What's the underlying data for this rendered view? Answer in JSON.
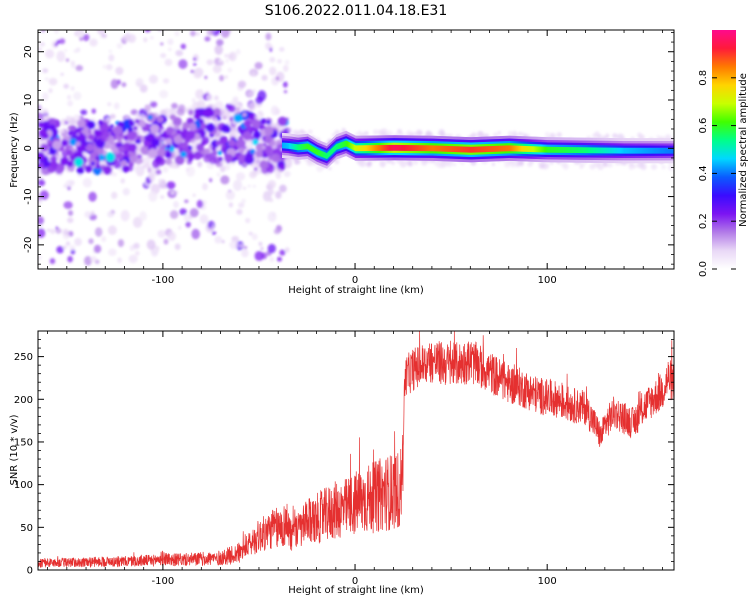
{
  "figure": {
    "title": "S106.2022.011.04.18.E31"
  },
  "colors": {
    "snr_line": "#e53030",
    "axis": "#000000",
    "spectro_bg": "#ffffff",
    "colormap": [
      "#ffffff",
      "#e9d8f6",
      "#b27be8",
      "#7c14f2",
      "#3a0cff",
      "#0a5bff",
      "#00d8ff",
      "#00ff8a",
      "#40ff00",
      "#c8ff00",
      "#ffd400",
      "#ff7a00",
      "#ff1a3a",
      "#ff0a8c"
    ]
  },
  "chart_data": [
    {
      "type": "heatmap",
      "xlabel": "Height of straight line (km)",
      "ylabel": "Frequency (Hz)",
      "xlim": [
        -165,
        166
      ],
      "ylim": [
        -25,
        24.5
      ],
      "xticks": [
        -100,
        0,
        100
      ],
      "yticks": [
        -20,
        -10,
        0,
        10,
        20
      ],
      "colorbar": {
        "label": "Normalized spectral amplitude",
        "range": [
          0.0,
          1.0
        ],
        "ticks": [
          "0.0",
          "0.2",
          "0.4",
          "0.6",
          "0.8"
        ],
        "tick_values": [
          0.0,
          0.2,
          0.4,
          0.6,
          0.8
        ]
      },
      "ridge": {
        "description_points_x": [
          -165,
          -140,
          -120,
          -100,
          -80,
          -60,
          -45,
          -35,
          -30,
          -25,
          -20,
          -15,
          -10,
          -5,
          0,
          20,
          40,
          60,
          80,
          100,
          120,
          140,
          166
        ],
        "center_freq": [
          0.5,
          0.3,
          0.5,
          2.0,
          3.0,
          2.5,
          0.8,
          0.5,
          0.2,
          0.4,
          -0.8,
          -1.6,
          0.3,
          1.0,
          0.0,
          0.1,
          0.0,
          -0.3,
          0.0,
          -0.3,
          -0.4,
          -0.5,
          -0.5
        ],
        "peak_amplitude": [
          0.4,
          0.4,
          0.4,
          0.45,
          0.45,
          0.45,
          0.4,
          0.45,
          0.55,
          0.6,
          0.6,
          0.55,
          0.55,
          0.6,
          0.7,
          0.95,
          0.85,
          0.9,
          0.85,
          0.6,
          0.55,
          0.45,
          0.4
        ]
      }
    },
    {
      "type": "line",
      "xlabel": "Height of straight line (km)",
      "ylabel": "SNR (10 * v/v)",
      "xlim": [
        -165,
        166
      ],
      "ylim": [
        0,
        280
      ],
      "xticks": [
        -100,
        0,
        100
      ],
      "yticks": [
        0,
        50,
        100,
        150,
        200,
        250
      ],
      "series": [
        {
          "x": [
            -165,
            -150,
            -140,
            -130,
            -120,
            -110,
            -105,
            -100,
            -95,
            -90,
            -80,
            -70,
            -60,
            -55,
            -50,
            -45,
            -42,
            -40,
            -35,
            -33,
            -30,
            -25,
            -20,
            -15,
            -10,
            -5,
            0,
            5,
            10,
            15,
            20,
            24,
            25,
            26,
            30,
            35,
            40,
            45,
            50,
            55,
            60,
            65,
            70,
            75,
            80,
            85,
            90,
            95,
            100,
            105,
            110,
            115,
            120,
            125,
            128,
            130,
            135,
            140,
            145,
            150,
            155,
            160,
            163,
            166
          ],
          "y": [
            8,
            9,
            9,
            10,
            10,
            11,
            11,
            14,
            12,
            12,
            13,
            14,
            20,
            30,
            40,
            45,
            50,
            48,
            55,
            40,
            45,
            55,
            60,
            65,
            70,
            72,
            78,
            82,
            85,
            90,
            92,
            95,
            150,
            225,
            235,
            240,
            245,
            242,
            240,
            242,
            245,
            238,
            232,
            225,
            218,
            215,
            210,
            205,
            202,
            200,
            195,
            192,
            190,
            170,
            155,
            170,
            185,
            178,
            172,
            190,
            200,
            210,
            225,
            218
          ]
        }
      ]
    }
  ]
}
